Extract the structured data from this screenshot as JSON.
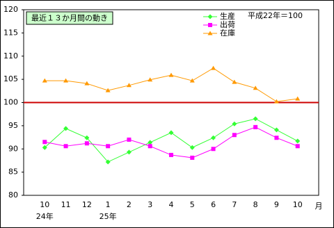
{
  "chart_data": {
    "type": "line",
    "title": "最近１３か月間の動き",
    "note": "平成22年＝100",
    "categories": [
      "10",
      "11",
      "12",
      "1",
      "2",
      "3",
      "4",
      "5",
      "6",
      "7",
      "8",
      "9",
      "10"
    ],
    "category_years": [
      "24年",
      null,
      null,
      "25年",
      null,
      null,
      null,
      null,
      null,
      null,
      null,
      null,
      null
    ],
    "xlabel": "月",
    "series": [
      {
        "name": "生産",
        "color": "#33ff33",
        "marker": "diamond",
        "values": [
          90.3,
          94.4,
          92.4,
          87.2,
          89.3,
          91.4,
          93.5,
          90.3,
          92.4,
          95.4,
          96.5,
          94.1,
          91.7
        ]
      },
      {
        "name": "出荷",
        "color": "#ff00ff",
        "marker": "square",
        "values": [
          91.5,
          90.6,
          91.2,
          90.6,
          92.0,
          90.6,
          88.7,
          88.1,
          90.0,
          93.0,
          94.7,
          92.4,
          90.6
        ]
      },
      {
        "name": "在庫",
        "color": "#ff9900",
        "marker": "triangle",
        "values": [
          104.7,
          104.7,
          104.1,
          102.6,
          103.7,
          104.9,
          105.9,
          104.7,
          107.4,
          104.4,
          103.1,
          100.2,
          100.8
        ]
      }
    ],
    "ylim": [
      80,
      120
    ],
    "yticks": [
      80,
      85,
      90,
      95,
      100,
      105,
      110,
      115,
      120
    ],
    "reference_line": 100,
    "reference_color": "#cc0000",
    "grid": false,
    "legend": "top-right"
  }
}
